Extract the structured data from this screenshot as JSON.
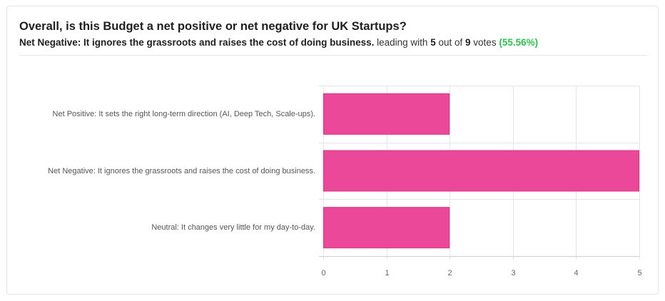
{
  "poll": {
    "question": "Overall, is this Budget a net positive or net negative for UK Startups?",
    "leader_text": "Net Negative: It ignores the grassroots and raises the cost of doing business.",
    "leading_with": "leading with",
    "leader_votes": "5",
    "out_of": "out of",
    "total_votes": "9",
    "votes_word": "votes",
    "leader_percent": "(55.56%)"
  },
  "chart_data": {
    "type": "bar",
    "orientation": "horizontal",
    "categories": [
      "Net Positive: It sets the right long-term direction (AI, Deep Tech, Scale-ups).",
      "Net Negative: It ignores the grassroots and raises the cost of doing business.",
      "Neutral: It changes very little for my day-to-day."
    ],
    "values": [
      2,
      5,
      2
    ],
    "xlim": [
      0,
      5
    ],
    "xticks": [
      "0",
      "1",
      "2",
      "3",
      "4",
      "5"
    ],
    "grid": true,
    "bar_color": "#ec4899"
  }
}
